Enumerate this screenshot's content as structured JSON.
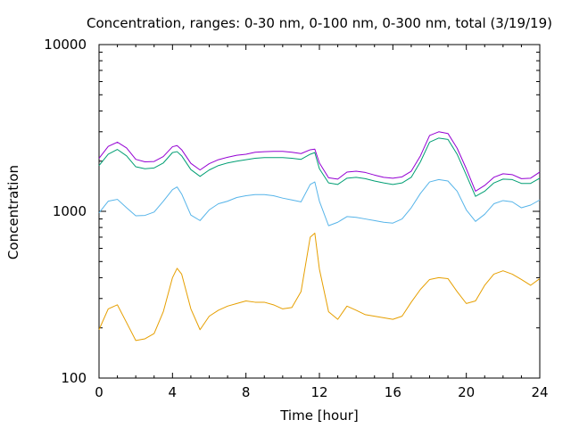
{
  "chart_data": {
    "type": "line",
    "title": "Concentration, ranges: 0-30 nm, 0-100 nm, 0-300 nm, total (3/19/19)",
    "xlabel": "Time [hour]",
    "ylabel": "Concentration",
    "xlim": [
      0,
      24
    ],
    "ylim": [
      100,
      10000
    ],
    "yscale": "log",
    "grid": false,
    "x_ticks": [
      0,
      4,
      8,
      12,
      16,
      20,
      24
    ],
    "y_ticks": [
      100,
      1000,
      10000
    ],
    "x_tick_labels": [
      "0",
      "4",
      "8",
      "12",
      "16",
      "20",
      "24"
    ],
    "y_tick_labels": [
      "100",
      "1000",
      "10000"
    ],
    "x": [
      0,
      0.5,
      1,
      1.5,
      2,
      2.5,
      3,
      3.5,
      4,
      4.25,
      4.5,
      5,
      5.5,
      6,
      6.5,
      7,
      7.5,
      8,
      8.5,
      9,
      9.5,
      10,
      10.5,
      11,
      11.5,
      11.75,
      12,
      12.5,
      13,
      13.5,
      14,
      14.5,
      15,
      15.5,
      16,
      16.5,
      17,
      17.5,
      18,
      18.5,
      19,
      19.5,
      20,
      20.5,
      21,
      21.5,
      22,
      22.5,
      23,
      23.5,
      24
    ],
    "series": [
      {
        "color": "#e69f00",
        "values": [
          195,
          260,
          275,
          215,
          168,
          172,
          185,
          250,
          400,
          455,
          420,
          260,
          195,
          235,
          255,
          270,
          280,
          290,
          285,
          285,
          275,
          260,
          265,
          330,
          700,
          740,
          450,
          250,
          225,
          270,
          255,
          240,
          235,
          230,
          225,
          235,
          285,
          340,
          390,
          400,
          395,
          330,
          280,
          290,
          360,
          420,
          440,
          420,
          390,
          360,
          395
        ]
      },
      {
        "color": "#56b4e9",
        "values": [
          980,
          1150,
          1180,
          1050,
          940,
          945,
          990,
          1150,
          1350,
          1400,
          1270,
          950,
          880,
          1020,
          1110,
          1150,
          1210,
          1240,
          1260,
          1260,
          1240,
          1200,
          1170,
          1140,
          1450,
          1500,
          1150,
          820,
          860,
          930,
          920,
          900,
          880,
          860,
          850,
          900,
          1050,
          1280,
          1500,
          1550,
          1520,
          1320,
          1020,
          870,
          960,
          1110,
          1160,
          1140,
          1050,
          1090,
          1170
        ]
      },
      {
        "color": "#009e73",
        "values": [
          1880,
          2200,
          2350,
          2150,
          1850,
          1800,
          1820,
          1950,
          2250,
          2280,
          2150,
          1780,
          1620,
          1770,
          1880,
          1950,
          2000,
          2040,
          2080,
          2100,
          2100,
          2100,
          2080,
          2050,
          2200,
          2250,
          1800,
          1480,
          1450,
          1580,
          1600,
          1570,
          1520,
          1480,
          1450,
          1480,
          1600,
          1980,
          2600,
          2750,
          2700,
          2200,
          1650,
          1230,
          1320,
          1480,
          1560,
          1550,
          1470,
          1470,
          1580
        ]
      },
      {
        "color": "#9400d3",
        "values": [
          2080,
          2450,
          2600,
          2400,
          2050,
          1980,
          1990,
          2130,
          2440,
          2480,
          2340,
          1940,
          1770,
          1930,
          2040,
          2110,
          2170,
          2200,
          2260,
          2280,
          2290,
          2290,
          2260,
          2220,
          2340,
          2360,
          1950,
          1590,
          1560,
          1720,
          1740,
          1710,
          1650,
          1600,
          1580,
          1610,
          1740,
          2150,
          2850,
          3000,
          2930,
          2390,
          1800,
          1320,
          1430,
          1600,
          1680,
          1660,
          1570,
          1580,
          1720
        ]
      }
    ]
  }
}
